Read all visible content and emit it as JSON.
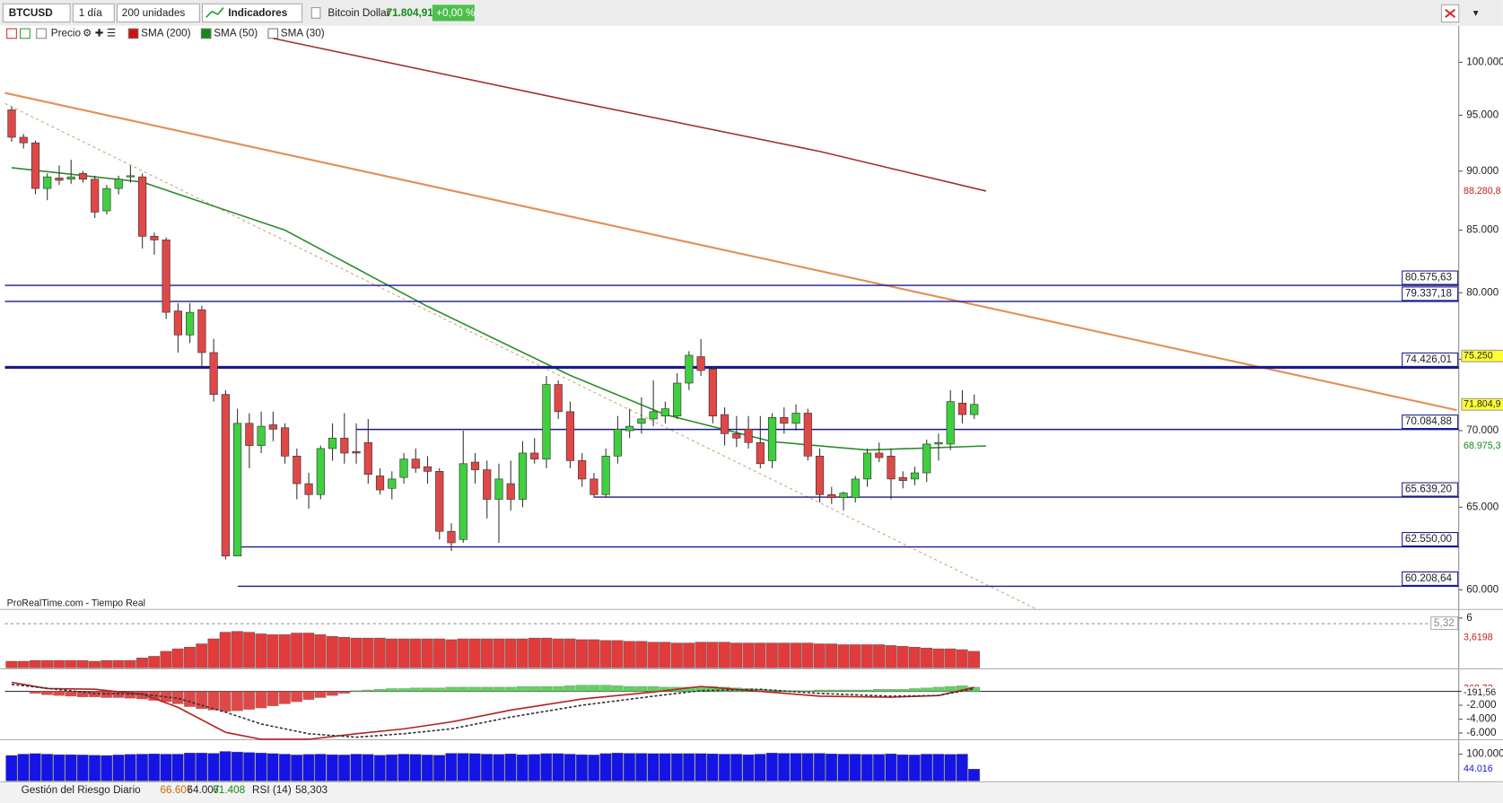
{
  "toolbar": {
    "symbol": "BTCUSD",
    "timeframe": "1 día",
    "units": "200 unidades",
    "indicators": "Indicadores",
    "instrument": "Bitcoin Dollar",
    "price": "71.804,91",
    "change": "+0,00 %"
  },
  "indicator_bar": {
    "price": "Precio",
    "items": [
      {
        "name": "SMA (200)",
        "color": "#d01010"
      },
      {
        "name": "SMA (50)",
        "color": "#138a13"
      },
      {
        "name": "SMA (30)",
        "color": "#ffffff"
      }
    ]
  },
  "status_bar": {
    "indicator": "Gestión del Riesgo Diario",
    "values": [
      "66.607",
      "64.007",
      "61.408"
    ],
    "rsi": "RSI (14)",
    "rsi_value": "58,303"
  },
  "chart_data": [
    {
      "type": "candlestick",
      "watermark": "ProRealTime.com - Tiempo Real",
      "log": true,
      "ylim": [
        58930,
        103590
      ],
      "yticks": [
        {
          "value": 60000,
          "label": "60.000"
        },
        {
          "value": 65000,
          "label": "65.000"
        },
        {
          "value": 70000,
          "label": "70.000"
        },
        {
          "value": 75000,
          "label": "75.000"
        },
        {
          "value": 80000,
          "label": "80.000"
        },
        {
          "value": 85000,
          "label": "85.000"
        },
        {
          "value": 90000,
          "label": "90.000"
        },
        {
          "value": 95000,
          "label": "95.000"
        },
        {
          "value": 100000,
          "label": "100.000"
        }
      ],
      "up_color": "#3fcf3f",
      "down_color": "#e04848",
      "open": [
        95500,
        93000,
        92500,
        88500,
        89400,
        89300,
        89800,
        89300,
        86600,
        88500,
        89500,
        89500,
        84500,
        84200,
        78600,
        76800,
        78700,
        75500,
        72500,
        62000,
        70500,
        69000,
        70400,
        70200,
        68300,
        66500,
        65800,
        68800,
        69500,
        68600,
        69200,
        67000,
        66200,
        66900,
        68100,
        67600,
        67300,
        63500,
        63000,
        67900,
        67400,
        65500,
        66500,
        65500,
        68500,
        68100,
        73200,
        71300,
        68000,
        66800,
        65800,
        68300,
        70000,
        70500,
        70800,
        71000,
        71000,
        73300,
        75200,
        74300,
        71100,
        69800,
        70100,
        69200,
        68000,
        70900,
        70500,
        71200,
        68300,
        65800,
        65600,
        65600,
        66800,
        68500,
        68300,
        66900,
        66800,
        67200,
        69100,
        69100,
        71900,
        71100
      ],
      "high": [
        95800,
        93300,
        92700,
        89800,
        90500,
        91000,
        90000,
        89600,
        88800,
        89600,
        90500,
        89800,
        84800,
        84400,
        79200,
        79200,
        79000,
        76500,
        72800,
        71500,
        71200,
        71300,
        71300,
        70500,
        68800,
        67200,
        69000,
        70500,
        71200,
        70500,
        70800,
        67500,
        67300,
        68500,
        68800,
        68300,
        67500,
        64000,
        70000,
        68500,
        68000,
        67800,
        68000,
        69300,
        69500,
        73800,
        73500,
        72000,
        68500,
        67200,
        68800,
        71000,
        71500,
        72300,
        73500,
        72000,
        74000,
        75600,
        76500,
        74500,
        71600,
        71000,
        71000,
        71000,
        71200,
        71600,
        71800,
        71500,
        68800,
        66300,
        66000,
        67000,
        68800,
        69200,
        68800,
        67300,
        67600,
        69400,
        69800,
        72800,
        72800,
        72500
      ],
      "low": [
        92600,
        92000,
        88000,
        87500,
        88800,
        88900,
        89000,
        86000,
        86300,
        88000,
        89000,
        83500,
        83000,
        78000,
        75500,
        76200,
        74500,
        72000,
        61800,
        62000,
        67500,
        68500,
        69300,
        67800,
        65500,
        64900,
        65500,
        68000,
        67800,
        67800,
        66500,
        65800,
        65500,
        66500,
        67200,
        66500,
        63000,
        62300,
        62800,
        66500,
        64300,
        62800,
        64800,
        65000,
        67800,
        67500,
        70800,
        67500,
        66300,
        65600,
        65600,
        67800,
        69500,
        69800,
        70300,
        70500,
        70800,
        72800,
        73800,
        70500,
        69000,
        68900,
        68800,
        67500,
        67500,
        69800,
        70000,
        68000,
        65300,
        65200,
        64800,
        65300,
        66300,
        67900,
        65500,
        66200,
        66400,
        66600,
        68000,
        68700,
        70500,
        70800
      ],
      "close": [
        93000,
        92500,
        88500,
        89500,
        89200,
        89500,
        89300,
        86500,
        88500,
        89300,
        89600,
        84500,
        84200,
        78500,
        76800,
        78500,
        75500,
        72500,
        62000,
        70500,
        69000,
        70300,
        70100,
        68300,
        66500,
        65800,
        68800,
        69500,
        68500,
        68500,
        67100,
        66100,
        66800,
        68100,
        67500,
        67300,
        63500,
        62800,
        67800,
        67400,
        65500,
        66800,
        65500,
        68500,
        68100,
        73200,
        71300,
        68000,
        66800,
        65800,
        68300,
        70100,
        70300,
        70800,
        71300,
        71500,
        73300,
        75300,
        74200,
        71000,
        69800,
        69500,
        69200,
        67800,
        70900,
        70500,
        71200,
        68300,
        65800,
        65600,
        65900,
        66800,
        68500,
        68200,
        66800,
        66700,
        67200,
        69100,
        69200,
        72000,
        71100,
        71804.91
      ],
      "series": [
        {
          "color": "#a0322d",
          "x": [
            22,
            47,
            68,
            82
          ],
          "values": [
            102346,
            96357,
            91735,
            88281
          ]
        },
        {
          "color": "#2e8b2e",
          "x": [
            0,
            11,
            23,
            35,
            47,
            55,
            64,
            72,
            82
          ],
          "values": [
            90300,
            89050,
            85000,
            78950,
            73850,
            71100,
            69260,
            68700,
            68975.3
          ]
        }
      ],
      "levels": [
        {
          "value": 80575.63,
          "label": "80.575,63"
        },
        {
          "value": 79337.18,
          "label": "79.337,18"
        },
        {
          "value": 74426.01,
          "label": "74.426,01"
        },
        {
          "value": 70084.88,
          "label": "70.084,88"
        },
        {
          "value": 65639.2,
          "label": "65.639,20"
        },
        {
          "value": 62550.0,
          "label": "62.550,00"
        },
        {
          "value": 60208.64,
          "label": "60.208,64"
        }
      ],
      "tags": [
        {
          "value": 88280.8,
          "label": "88.280,8",
          "color": "#c02020",
          "background": "#ffffff"
        },
        {
          "value": 75250,
          "label": "75.250",
          "color": "#222222",
          "background": "#ffff33"
        },
        {
          "value": 71804.9,
          "label": "71.804,9",
          "color": "#222222",
          "background": "#ffff33"
        },
        {
          "value": 68975.3,
          "label": "68.975,3",
          "color": "#138a13",
          "background": "#ffffff"
        }
      ]
    },
    {
      "type": "bar",
      "color": "#e23b3b",
      "ylim": [
        0,
        6.92
      ],
      "yticks": [
        6
      ],
      "values": [
        0.8,
        0.8,
        0.9,
        0.9,
        0.9,
        0.9,
        0.9,
        0.8,
        0.9,
        0.9,
        0.9,
        1.2,
        1.4,
        2.0,
        2.3,
        2.5,
        2.9,
        3.5,
        4.3,
        4.4,
        4.3,
        4.1,
        4.0,
        4.0,
        4.2,
        4.2,
        4.0,
        3.8,
        3.7,
        3.6,
        3.6,
        3.6,
        3.5,
        3.5,
        3.5,
        3.5,
        3.5,
        3.4,
        3.5,
        3.5,
        3.5,
        3.5,
        3.5,
        3.5,
        3.6,
        3.6,
        3.5,
        3.5,
        3.4,
        3.4,
        3.3,
        3.3,
        3.2,
        3.2,
        3.1,
        3.1,
        3.0,
        3.0,
        3.1,
        3.1,
        3.1,
        3.0,
        3.0,
        3.0,
        3.0,
        3.0,
        3.0,
        3.0,
        2.9,
        2.9,
        2.8,
        2.8,
        2.8,
        2.8,
        2.7,
        2.6,
        2.5,
        2.4,
        2.3,
        2.3,
        2.2,
        2.0
      ],
      "reference": {
        "value": 5.32,
        "label": "5,32"
      },
      "tags": [
        {
          "value": 3.6198,
          "label": "3,6198",
          "color": "#c02020",
          "background": "#ffffff"
        }
      ]
    },
    {
      "type": "macd",
      "up_color": "#5fd35f",
      "down_color": "#e04848",
      "ylim": [
        -6830,
        3100
      ],
      "yticks": [
        {
          "value": -2000,
          "label": "-2.000"
        },
        {
          "value": -4000,
          "label": "-4.000"
        },
        {
          "value": -6000,
          "label": "-6.000"
        }
      ],
      "values": [
        0,
        0,
        -300,
        -500,
        -600,
        -700,
        -800,
        -800,
        -900,
        -900,
        -1000,
        -1100,
        -1300,
        -1500,
        -1800,
        -2200,
        -2500,
        -2700,
        -2900,
        -2800,
        -2600,
        -2400,
        -2100,
        -1800,
        -1500,
        -1200,
        -900,
        -600,
        -300,
        100,
        200,
        300,
        400,
        400,
        500,
        500,
        500,
        600,
        600,
        600,
        600,
        600,
        600,
        700,
        700,
        700,
        700,
        800,
        900,
        900,
        900,
        800,
        700,
        700,
        700,
        600,
        600,
        600,
        700,
        700,
        600,
        500,
        400,
        300,
        200,
        100,
        100,
        100,
        200,
        200,
        200,
        200,
        200,
        300,
        300,
        300,
        400,
        500,
        600,
        700,
        800,
        600
      ],
      "series": [
        {
          "color": "#b22222",
          "x": [
            0,
            3,
            7,
            11,
            14,
            18,
            21,
            25,
            29,
            33,
            37,
            42,
            48,
            54,
            58,
            63,
            68,
            74,
            78,
            81
          ],
          "values": [
            1300,
            400,
            300,
            -400,
            -2300,
            -5900,
            -6900,
            -6900,
            -6100,
            -5400,
            -4400,
            -2700,
            -1100,
            -100,
            700,
            0,
            -700,
            -850,
            -600,
            569.3
          ]
        },
        {
          "color": "#333333",
          "dashed": true,
          "x": [
            0,
            7,
            11,
            14,
            18,
            21,
            25,
            29,
            33,
            37,
            42,
            48,
            54,
            58,
            63,
            68,
            74,
            78,
            81
          ],
          "values": [
            1000,
            -300,
            -400,
            -1000,
            -3000,
            -4700,
            -6100,
            -6600,
            -6100,
            -5400,
            -3700,
            -2000,
            -700,
            100,
            300,
            -300,
            -700,
            -600,
            368.73
          ]
        }
      ],
      "tags": [
        {
          "value": 569.3,
          "label": "569,30",
          "color": "#138a13",
          "background": "#ffffff"
        },
        {
          "value": 368.73,
          "label": "368,73",
          "color": "#b22222",
          "background": "#ffffff"
        },
        {
          "value": -191.56,
          "label": "-191,56",
          "color": "#222222",
          "background": "#ffffff"
        }
      ]
    },
    {
      "type": "bar",
      "color": "#1414e6",
      "ylim": [
        0,
        150000
      ],
      "yticks": [
        {
          "value": 100000,
          "label": "100.000"
        }
      ],
      "values": [
        95000,
        100000,
        102000,
        100000,
        98000,
        98000,
        97000,
        96000,
        95000,
        97000,
        99000,
        100000,
        101000,
        100000,
        100000,
        104000,
        104000,
        103000,
        110000,
        108000,
        106000,
        104000,
        102000,
        100000,
        97000,
        99000,
        100000,
        98000,
        97000,
        100000,
        99000,
        96000,
        98000,
        100000,
        99000,
        97000,
        96000,
        103000,
        103000,
        102000,
        100000,
        99000,
        101000,
        98000,
        99000,
        102000,
        102000,
        100000,
        98000,
        97000,
        102000,
        104000,
        103000,
        103000,
        102000,
        102000,
        102000,
        102000,
        102000,
        101000,
        100000,
        100000,
        98000,
        100000,
        104000,
        103000,
        103000,
        103000,
        103000,
        101000,
        100000,
        100000,
        99000,
        99000,
        101000,
        98000,
        97000,
        100000,
        100000,
        99000,
        100000,
        44016
      ],
      "tags": [
        {
          "value": 44016,
          "label": "44.016",
          "color": "#1414e6",
          "background": "#ffffff"
        }
      ]
    }
  ]
}
